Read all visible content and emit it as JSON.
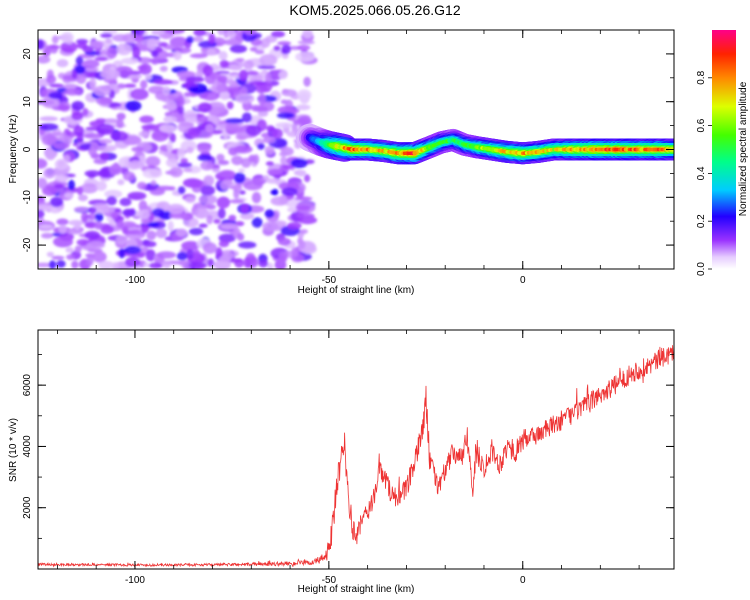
{
  "title": "KOM5.2025.066.05.26.G12",
  "chart_data": [
    {
      "type": "heatmap",
      "name": "spectrogram",
      "xlabel": "Height of straight line (km)",
      "ylabel": "Frequency (Hz)",
      "xlim": [
        -125,
        39
      ],
      "ylim": [
        -25,
        25
      ],
      "x_ticks": [
        -100,
        -50,
        0
      ],
      "x_tick_labels": [
        "-100",
        "-50",
        "0"
      ],
      "y_ticks": [
        -20,
        -10,
        0,
        10,
        20
      ],
      "y_tick_labels": [
        "-20",
        "-10",
        "0",
        "10",
        "20"
      ],
      "noise_region_x": [
        -125,
        -55
      ],
      "ridge_x": [
        -55,
        -52,
        -50,
        -47,
        -44,
        -40,
        -36,
        -32,
        -28,
        -24,
        -21,
        -18,
        -15,
        -12,
        -8,
        -4,
        0,
        4,
        8,
        12,
        16,
        20,
        25,
        30,
        35,
        39
      ],
      "ridge_y": [
        2.5,
        1.5,
        1.0,
        0.5,
        0.0,
        0.0,
        -0.3,
        -0.8,
        -0.8,
        0.5,
        1.5,
        2.0,
        1.0,
        0.5,
        0.0,
        -0.5,
        -0.8,
        -0.5,
        0.0,
        0.0,
        0.0,
        0.0,
        0.0,
        0.0,
        0.0,
        0.0
      ],
      "ridge_amplitude": [
        0.25,
        0.4,
        0.6,
        0.75,
        0.9,
        0.8,
        0.75,
        0.85,
        0.9,
        0.6,
        0.55,
        0.5,
        0.55,
        0.6,
        0.7,
        0.75,
        0.8,
        0.75,
        0.7,
        0.8,
        0.85,
        0.9,
        0.9,
        0.85,
        0.85,
        0.8
      ],
      "colorbar": {
        "label": "Normalized spectral amplitude",
        "range": [
          0,
          1
        ],
        "ticks": [
          0.0,
          0.2,
          0.4,
          0.6,
          0.8
        ],
        "tick_labels": [
          "0.0",
          "0.2",
          "0.4",
          "0.6",
          "0.8"
        ]
      }
    },
    {
      "type": "line",
      "name": "snr",
      "xlabel": "Height of straight line (km)",
      "ylabel": "SNR (10 * v/v)",
      "xlim": [
        -125,
        39
      ],
      "ylim": [
        0,
        7800
      ],
      "x_ticks": [
        -100,
        -50,
        0
      ],
      "x_tick_labels": [
        "-100",
        "-50",
        "0"
      ],
      "y_ticks": [
        2000,
        4000,
        6000
      ],
      "y_tick_labels": [
        "2000",
        "4000",
        "6000"
      ],
      "color": "#ee3333",
      "x": [
        -125,
        -110,
        -95,
        -80,
        -65,
        -55,
        -52,
        -50,
        -49,
        -48,
        -47,
        -46,
        -45,
        -44,
        -43,
        -42,
        -40,
        -38,
        -37,
        -36,
        -34,
        -32,
        -30,
        -28,
        -27,
        -26,
        -25,
        -24,
        -22,
        -20,
        -18,
        -16,
        -14,
        -13,
        -12,
        -11,
        -10,
        -8,
        -6,
        -4,
        -2,
        0,
        4,
        8,
        12,
        16,
        20,
        24,
        28,
        32,
        36,
        39
      ],
      "y": [
        150,
        140,
        130,
        140,
        160,
        200,
        300,
        600,
        1400,
        2600,
        3400,
        4200,
        2400,
        1400,
        900,
        1400,
        1900,
        2400,
        3300,
        3100,
        2500,
        2300,
        2600,
        3400,
        3900,
        4400,
        5600,
        3600,
        2700,
        3200,
        3800,
        3600,
        4100,
        2500,
        3900,
        3600,
        3300,
        3900,
        3400,
        4000,
        3800,
        4200,
        4400,
        4700,
        5000,
        5300,
        5700,
        6000,
        6400,
        6600,
        6900,
        7100
      ],
      "noise_amplitude": [
        40,
        40,
        40,
        40,
        60,
        80,
        150,
        300,
        500,
        500,
        500,
        500,
        450,
        400,
        350,
        350,
        350,
        350,
        350,
        350,
        350,
        350,
        350,
        350,
        400,
        500,
        500,
        400,
        350,
        350,
        350,
        350,
        350,
        400,
        450,
        400,
        350,
        350,
        350,
        350,
        350,
        350,
        330,
        330,
        330,
        330,
        330,
        330,
        330,
        330,
        330,
        330
      ]
    }
  ]
}
